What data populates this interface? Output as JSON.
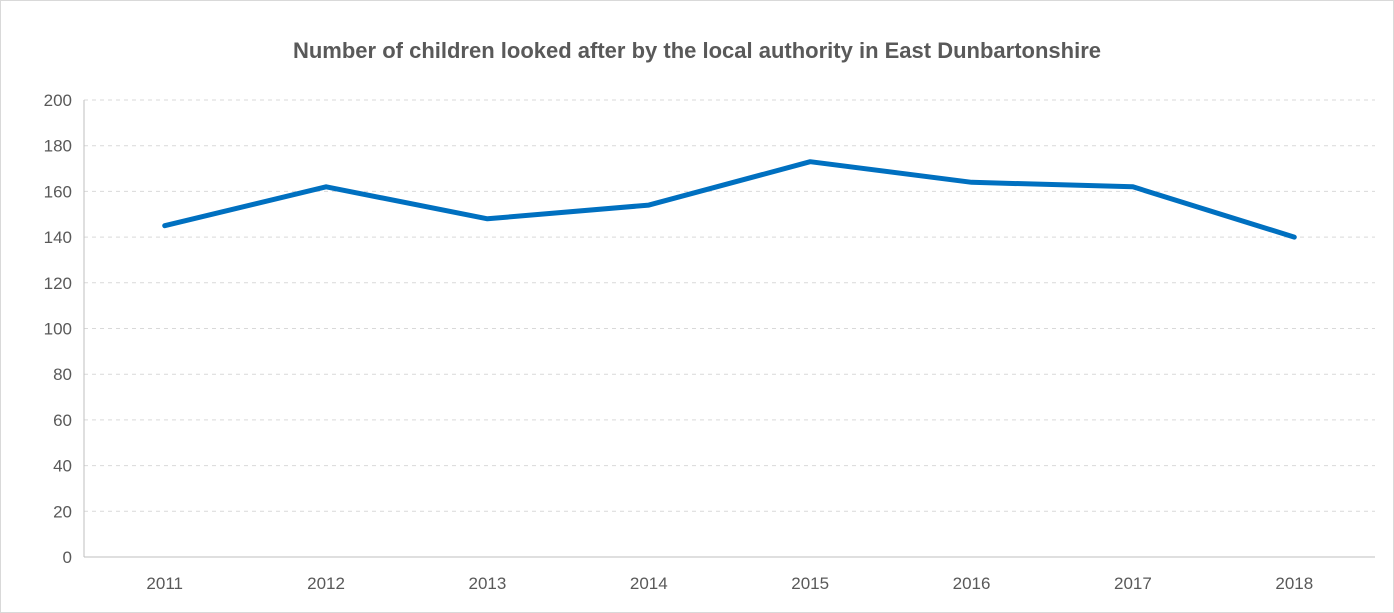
{
  "chart_data": {
    "type": "line",
    "title": "Number of children looked after by the local authority in East Dunbartonshire",
    "xlabel": "",
    "ylabel": "",
    "categories": [
      "2011",
      "2012",
      "2013",
      "2014",
      "2015",
      "2016",
      "2017",
      "2018"
    ],
    "series": [
      {
        "values": [
          145,
          162,
          148,
          154,
          173,
          164,
          162,
          140
        ],
        "color": "#0070c0"
      }
    ],
    "ylim": [
      0,
      200
    ],
    "yticks": [
      "0",
      "20",
      "40",
      "60",
      "80",
      "100",
      "120",
      "140",
      "160",
      "180",
      "200"
    ],
    "grid": true,
    "grid_style": "dashed",
    "legend": "none"
  }
}
